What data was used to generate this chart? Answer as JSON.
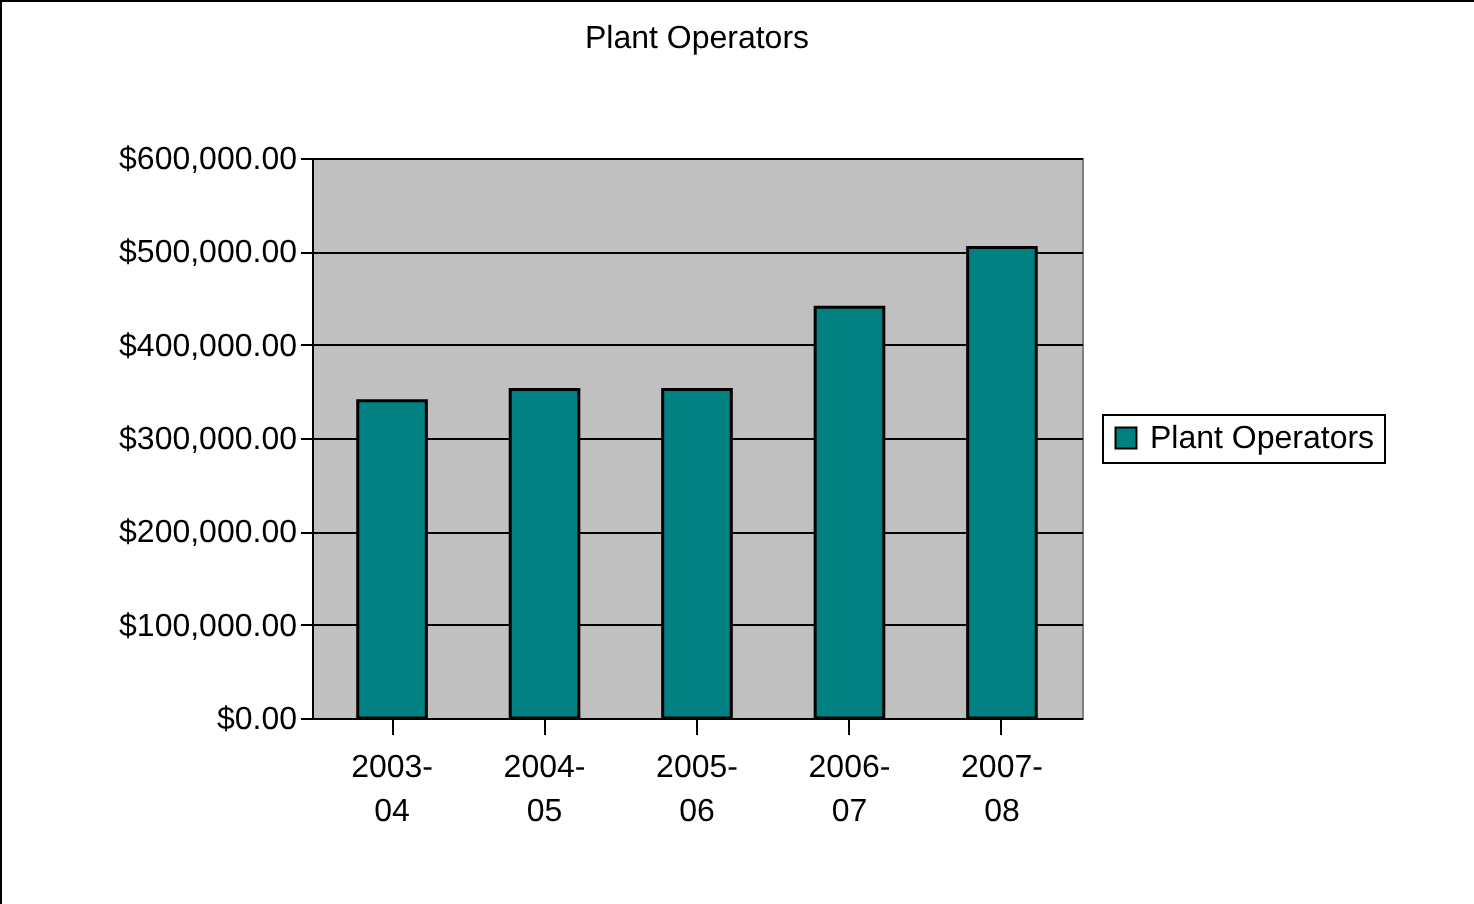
{
  "chart_data": {
    "type": "bar",
    "title": "Plant Operators",
    "categories": [
      "2003-04",
      "2004-05",
      "2005-06",
      "2006-07",
      "2007-08"
    ],
    "series": [
      {
        "name": "Plant Operators",
        "color": "#008080",
        "values": [
          340000,
          352000,
          352000,
          440000,
          504000
        ]
      }
    ],
    "ylim": [
      0,
      600000
    ],
    "yticks": [
      {
        "value": 0,
        "label": "$0.00"
      },
      {
        "value": 100000,
        "label": "$100,000.00"
      },
      {
        "value": 200000,
        "label": "$200,000.00"
      },
      {
        "value": 300000,
        "label": "$300,000.00"
      },
      {
        "value": 400000,
        "label": "$400,000.00"
      },
      {
        "value": 500000,
        "label": "$500,000.00"
      },
      {
        "value": 600000,
        "label": "$600,000.00"
      }
    ],
    "grid": "y",
    "legend": "right"
  }
}
